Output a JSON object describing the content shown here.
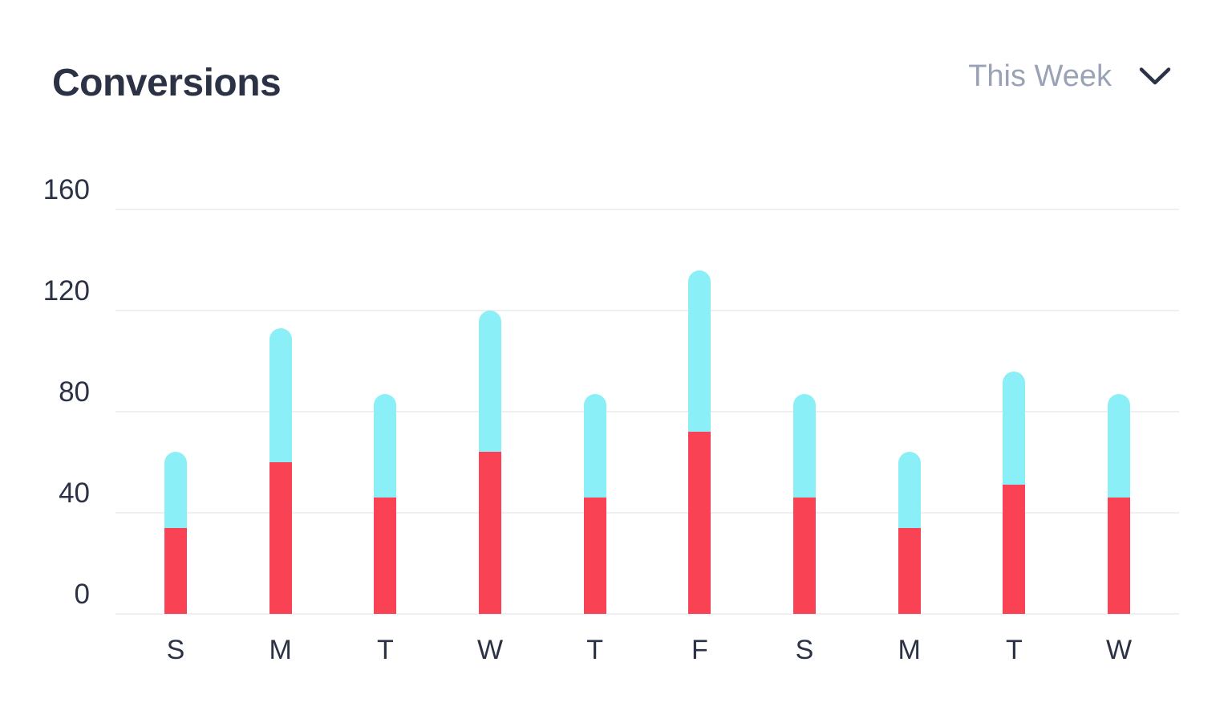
{
  "header": {
    "title": "Conversions",
    "period_selector": {
      "label": "This Week",
      "icon": "chevron-down-icon"
    }
  },
  "colors": {
    "accent_red": "#f94355",
    "accent_cyan": "#8aeff6",
    "text_dark": "#2b3245",
    "text_muted": "#9aa3b6",
    "gridline": "#edeff2",
    "background": "#ffffff"
  },
  "chart_data": {
    "type": "bar",
    "stacked": true,
    "title": "Conversions",
    "xlabel": "",
    "ylabel": "",
    "categories": [
      "S",
      "M",
      "T",
      "W",
      "T",
      "F",
      "S",
      "M",
      "T",
      "W"
    ],
    "series": [
      {
        "name": "series-red",
        "color_key": "accent_red",
        "values": [
          34,
          60,
          46,
          64,
          46,
          72,
          46,
          34,
          51,
          46
        ]
      },
      {
        "name": "series-cyan",
        "color_key": "accent_cyan",
        "values": [
          30,
          53,
          41,
          56,
          41,
          64,
          41,
          30,
          45,
          41
        ]
      }
    ],
    "totals": [
      64,
      113,
      87,
      120,
      87,
      136,
      87,
      64,
      96,
      87
    ],
    "y_ticks": [
      0,
      40,
      80,
      120,
      160
    ],
    "ylim": [
      0,
      160
    ],
    "grid": true,
    "legend": "none",
    "bar_cap": "rounded-top"
  }
}
